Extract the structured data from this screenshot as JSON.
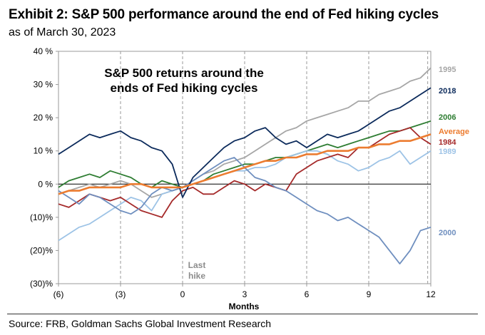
{
  "header": {
    "title": "Exhibit 2: S&P 500 performance around the end of Fed hiking cycles",
    "subtitle": "as of March 30, 2023"
  },
  "footer": {
    "source": "Source: FRB, Goldman Sachs Global Investment Research"
  },
  "chart_data": {
    "type": "line",
    "title": "S&P 500 returns around the ends of Fed hiking cycles",
    "xlabel": "Months",
    "ylabel": "",
    "xlim": [
      -6,
      12
    ],
    "ylim": [
      -30,
      40
    ],
    "x_ticks": [
      -6,
      -3,
      0,
      3,
      6,
      9,
      12
    ],
    "x_tick_labels": [
      "(6)",
      "(3)",
      "0",
      "3",
      "6",
      "9",
      "12"
    ],
    "y_ticks": [
      40,
      30,
      20,
      10,
      0,
      -10,
      -20,
      -30
    ],
    "y_tick_labels": [
      "40 %",
      "30 %",
      "20 %",
      "10 %",
      "0 %",
      "(10)%",
      "(20)%",
      "(30)%"
    ],
    "grid": "vertical dashed at x ticks",
    "annotation": "Last hike",
    "legend": "series labels at right end of lines",
    "x": [
      -6,
      -5.5,
      -5,
      -4.5,
      -4,
      -3.5,
      -3,
      -2.5,
      -2,
      -1.5,
      -1,
      -0.5,
      0,
      0.5,
      1,
      1.5,
      2,
      2.5,
      3,
      3.5,
      4,
      4.5,
      5,
      5.5,
      6,
      6.5,
      7,
      7.5,
      8,
      8.5,
      9,
      9.5,
      10,
      10.5,
      11,
      11.5,
      12
    ],
    "series": [
      {
        "name": "1995",
        "color": "#a6a6a6",
        "values": [
          -3,
          -2,
          -1,
          0,
          -1,
          0,
          1,
          0,
          -2,
          -4,
          -3,
          -2,
          -1,
          1,
          3,
          4,
          6,
          7,
          8,
          10,
          12,
          14,
          16,
          17,
          19,
          20,
          21,
          22,
          23,
          25,
          25,
          27,
          28,
          29,
          31,
          32,
          35
        ]
      },
      {
        "name": "2018",
        "color": "#0b2a5b",
        "values": [
          9,
          11,
          13,
          15,
          14,
          15,
          16,
          14,
          13,
          11,
          10,
          6,
          -4,
          2,
          5,
          8,
          11,
          13,
          14,
          16,
          17,
          14,
          12,
          13,
          11,
          13,
          15,
          14,
          15,
          16,
          18,
          20,
          22,
          23,
          25,
          27,
          29
        ]
      },
      {
        "name": "2006",
        "color": "#2e7d32",
        "values": [
          -1,
          1,
          2,
          3,
          2,
          4,
          3,
          2,
          0,
          -1,
          1,
          0,
          -1,
          0,
          1,
          3,
          4,
          5,
          6,
          6,
          7,
          8,
          8,
          9,
          10,
          11,
          12,
          11,
          12,
          13,
          14,
          15,
          16,
          16,
          17,
          18,
          19
        ]
      },
      {
        "name": "Average",
        "color": "#ec7c30",
        "values": [
          -3,
          -2,
          -2,
          -1,
          -1,
          -1,
          -1,
          0,
          0,
          -1,
          -1,
          -1,
          -1,
          0,
          1,
          2,
          3,
          4,
          5,
          6,
          7,
          7,
          8,
          8,
          9,
          9,
          10,
          10,
          10,
          11,
          11,
          12,
          12,
          13,
          13,
          14,
          15
        ]
      },
      {
        "name": "1984",
        "color": "#a52a2a",
        "values": [
          -6,
          -7,
          -5,
          -3,
          -4,
          -5,
          -4,
          -6,
          -8,
          -9,
          -10,
          -5,
          -2,
          -1,
          -3,
          -3,
          -1,
          1,
          0,
          -2,
          0,
          -1,
          -2,
          3,
          5,
          7,
          8,
          9,
          8,
          11,
          11,
          13,
          15,
          16,
          17,
          14,
          12
        ]
      },
      {
        "name": "1989",
        "color": "#9dc3e6",
        "values": [
          -17,
          -15,
          -13,
          -12,
          -10,
          -8,
          -6,
          -4,
          -5,
          -8,
          -3,
          -2,
          -1,
          0,
          1,
          2,
          3,
          4,
          4,
          5,
          5,
          6,
          8,
          9,
          10,
          10,
          9,
          7,
          6,
          4,
          5,
          7,
          8,
          10,
          6,
          8,
          10
        ]
      },
      {
        "name": "2000",
        "color": "#6f8fbf",
        "values": [
          -2,
          -4,
          -6,
          -3,
          -4,
          -6,
          -8,
          -9,
          -7,
          -3,
          -1,
          -2,
          -1,
          1,
          3,
          5,
          7,
          8,
          5,
          2,
          1,
          -1,
          -2,
          -4,
          -6,
          -8,
          -9,
          -11,
          -10,
          -12,
          -14,
          -16,
          -20,
          -24,
          -20,
          -14,
          -13
        ]
      }
    ]
  }
}
